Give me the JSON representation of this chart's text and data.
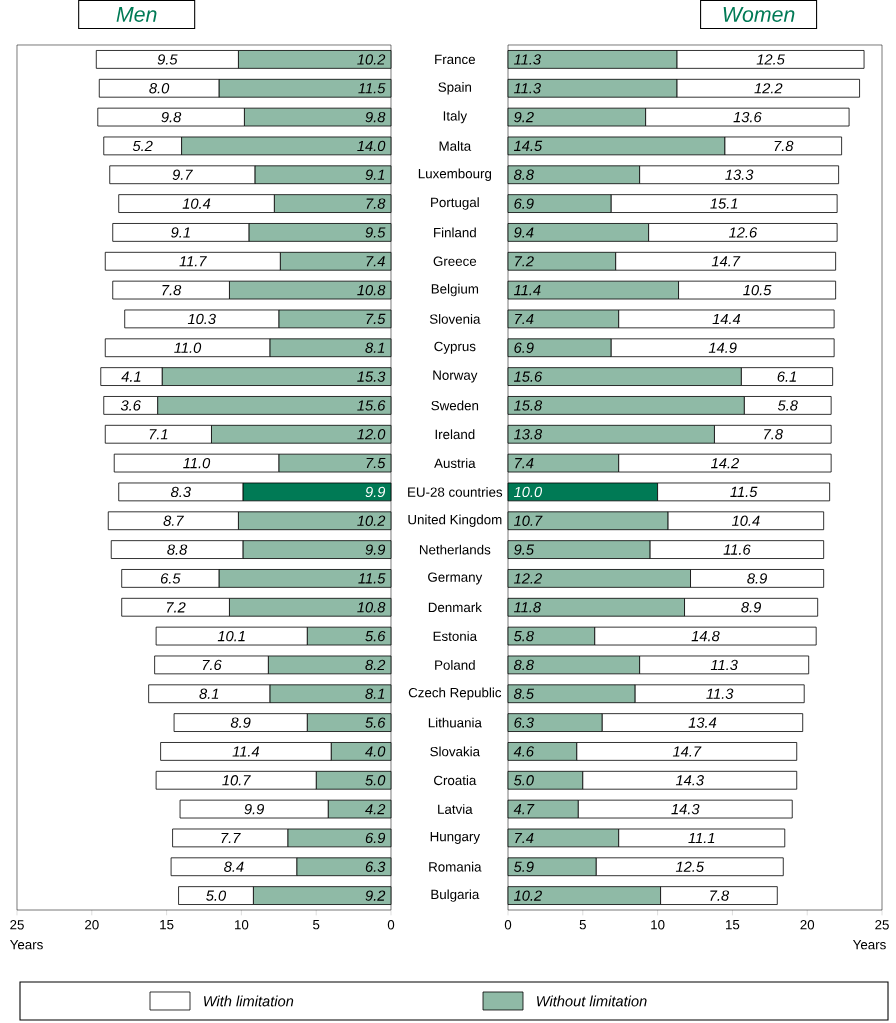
{
  "chart_data": [
    {
      "type": "bar",
      "orientation": "horizontal",
      "stacked": true,
      "title": "Men",
      "xlabel": "Years",
      "categories": [
        "France",
        "Spain",
        "Italy",
        "Malta",
        "Luxembourg",
        "Portugal",
        "Finland",
        "Greece",
        "Belgium",
        "Slovenia",
        "Cyprus",
        "Norway",
        "Sweden",
        "Ireland",
        "Austria",
        "EU-28 countries",
        "United Kingdom",
        "Netherlands",
        "Germany",
        "Denmark",
        "Estonia",
        "Poland",
        "Czech Republic",
        "Lithuania",
        "Slovakia",
        "Croatia",
        "Latvia",
        "Hungary",
        "Romania",
        "Bulgaria"
      ],
      "series": [
        {
          "name": "Without limitation",
          "color": "#8fbaa6",
          "colors": [
            "#8fbaa6",
            "#8fbaa6",
            "#8fbaa6",
            "#8fbaa6",
            "#8fbaa6",
            "#8fbaa6",
            "#8fbaa6",
            "#8fbaa6",
            "#8fbaa6",
            "#8fbaa6",
            "#8fbaa6",
            "#8fbaa6",
            "#8fbaa6",
            "#8fbaa6",
            "#8fbaa6",
            "#007a55",
            "#8fbaa6",
            "#8fbaa6",
            "#8fbaa6",
            "#8fbaa6",
            "#8fbaa6",
            "#8fbaa6",
            "#8fbaa6",
            "#8fbaa6",
            "#8fbaa6",
            "#8fbaa6",
            "#8fbaa6",
            "#8fbaa6",
            "#8fbaa6",
            "#8fbaa6"
          ],
          "values": [
            10.2,
            11.5,
            9.8,
            14.0,
            9.1,
            7.8,
            9.5,
            7.4,
            10.8,
            7.5,
            8.1,
            15.3,
            15.6,
            12.0,
            7.5,
            9.9,
            10.2,
            9.9,
            11.5,
            10.8,
            5.6,
            8.2,
            8.1,
            5.6,
            4.0,
            5.0,
            4.2,
            6.9,
            6.3,
            9.2
          ],
          "value_labels": [
            "10.2",
            "11.5",
            "9.8",
            "14.0",
            "9.1",
            "7.8",
            "9.5",
            "7.4",
            "10.8",
            "7.5",
            "8.1",
            "15.3",
            "15.6",
            "12.0",
            "7.5",
            "9.9",
            "10.2",
            "9.9",
            "11.5",
            "10.8",
            "5.6",
            "8.2",
            "8.1",
            "5.6",
            "4.0",
            "5.0",
            "4.2",
            "6.9",
            "6.3",
            "9.2"
          ]
        },
        {
          "name": "With limitation",
          "color": "#ffffff",
          "values": [
            9.5,
            8.0,
            9.8,
            5.2,
            9.7,
            10.4,
            9.1,
            11.7,
            7.8,
            10.3,
            11.0,
            4.1,
            3.6,
            7.1,
            11.0,
            8.3,
            8.7,
            8.8,
            6.5,
            7.2,
            10.1,
            7.6,
            8.1,
            8.9,
            11.4,
            10.7,
            9.9,
            7.7,
            8.4,
            5.0
          ],
          "value_labels": [
            "9.5",
            "8.0",
            "9.8",
            "5.2",
            "9.7",
            "10.4",
            "9.1",
            "11.7",
            "7.8",
            "10.3",
            "11.0",
            "4.1",
            "3.6",
            "7.1",
            "11.0",
            "8.3",
            "8.7",
            "8.8",
            "6.5",
            "7.2",
            "10.1",
            "7.6",
            "8.1",
            "8.9",
            "11.4",
            "10.7",
            "9.9",
            "7.7",
            "8.4",
            "5.0"
          ]
        }
      ],
      "xlim": [
        25,
        0
      ],
      "xticks": [
        25,
        20,
        15,
        10,
        5,
        0
      ],
      "legend": "bottom"
    },
    {
      "type": "bar",
      "orientation": "horizontal",
      "stacked": true,
      "title": "Women",
      "xlabel": "Years",
      "categories": [
        null,
        null,
        null,
        null,
        null,
        null,
        null,
        null,
        null,
        null,
        null,
        null,
        null,
        null,
        null,
        null,
        null,
        null,
        null,
        null,
        null,
        null,
        null,
        null,
        null,
        null,
        null,
        null,
        null,
        null
      ],
      "series": [
        {
          "colors": [
            "#8fbaa6",
            "#8fbaa6",
            "#8fbaa6",
            "#8fbaa6",
            "#8fbaa6",
            "#8fbaa6",
            "#8fbaa6",
            "#8fbaa6",
            "#8fbaa6",
            "#8fbaa6",
            "#8fbaa6",
            "#8fbaa6",
            "#8fbaa6",
            "#8fbaa6",
            "#8fbaa6",
            "#007a55",
            "#8fbaa6",
            "#8fbaa6",
            "#8fbaa6",
            "#8fbaa6",
            "#8fbaa6",
            "#8fbaa6",
            "#8fbaa6",
            "#8fbaa6",
            "#8fbaa6",
            "#8fbaa6",
            "#8fbaa6",
            "#8fbaa6",
            "#8fbaa6",
            "#8fbaa6"
          ],
          "values": [
            11.3,
            11.3,
            9.2,
            14.5,
            8.8,
            6.9,
            9.4,
            7.2,
            11.4,
            7.4,
            6.9,
            15.6,
            15.8,
            13.8,
            7.4,
            10.0,
            10.7,
            9.5,
            12.2,
            11.8,
            5.8,
            8.8,
            8.5,
            6.3,
            4.6,
            5.0,
            4.7,
            7.4,
            5.9,
            10.2
          ],
          "value_labels": [
            "11.3",
            "11.3",
            "9.2",
            "14.5",
            "8.8",
            "6.9",
            "9.4",
            "7.2",
            "11.4",
            "7.4",
            "6.9",
            "15.6",
            "15.8",
            "13.8",
            "7.4",
            "10.0",
            "10.7",
            "9.5",
            "12.2",
            "11.8",
            "5.8",
            "8.8",
            "8.5",
            "6.3",
            "4.6",
            "5.0",
            "4.7",
            "7.4",
            "5.9",
            "10.2"
          ]
        },
        {
          "color": "#ffffff",
          "values": [
            12.5,
            12.2,
            13.6,
            7.8,
            13.3,
            15.1,
            12.6,
            14.7,
            10.5,
            14.4,
            14.9,
            6.1,
            5.8,
            7.8,
            14.2,
            11.5,
            10.4,
            11.6,
            8.9,
            8.9,
            14.8,
            11.3,
            11.3,
            13.4,
            14.7,
            14.3,
            14.3,
            11.1,
            12.5,
            7.8
          ],
          "value_labels": [
            "12.5",
            "12.2",
            "13.6",
            "7.8",
            "13.3",
            "15.1",
            "12.6",
            "14.7",
            "10.5",
            "14.4",
            "14.9",
            "6.1",
            "5.8",
            "7.8",
            "14.2",
            "11.5",
            "10.4",
            "11.6",
            "8.9",
            "8.9",
            "14.8",
            "11.3",
            "11.3",
            "13.4",
            "14.7",
            "14.3",
            "14.3",
            "11.1",
            "12.5",
            "7.8"
          ]
        }
      ],
      "xlim": [
        0,
        25
      ],
      "xticks": [
        0,
        5,
        10,
        15,
        20,
        25
      ],
      "tick_labels": "x"
    }
  ]
}
